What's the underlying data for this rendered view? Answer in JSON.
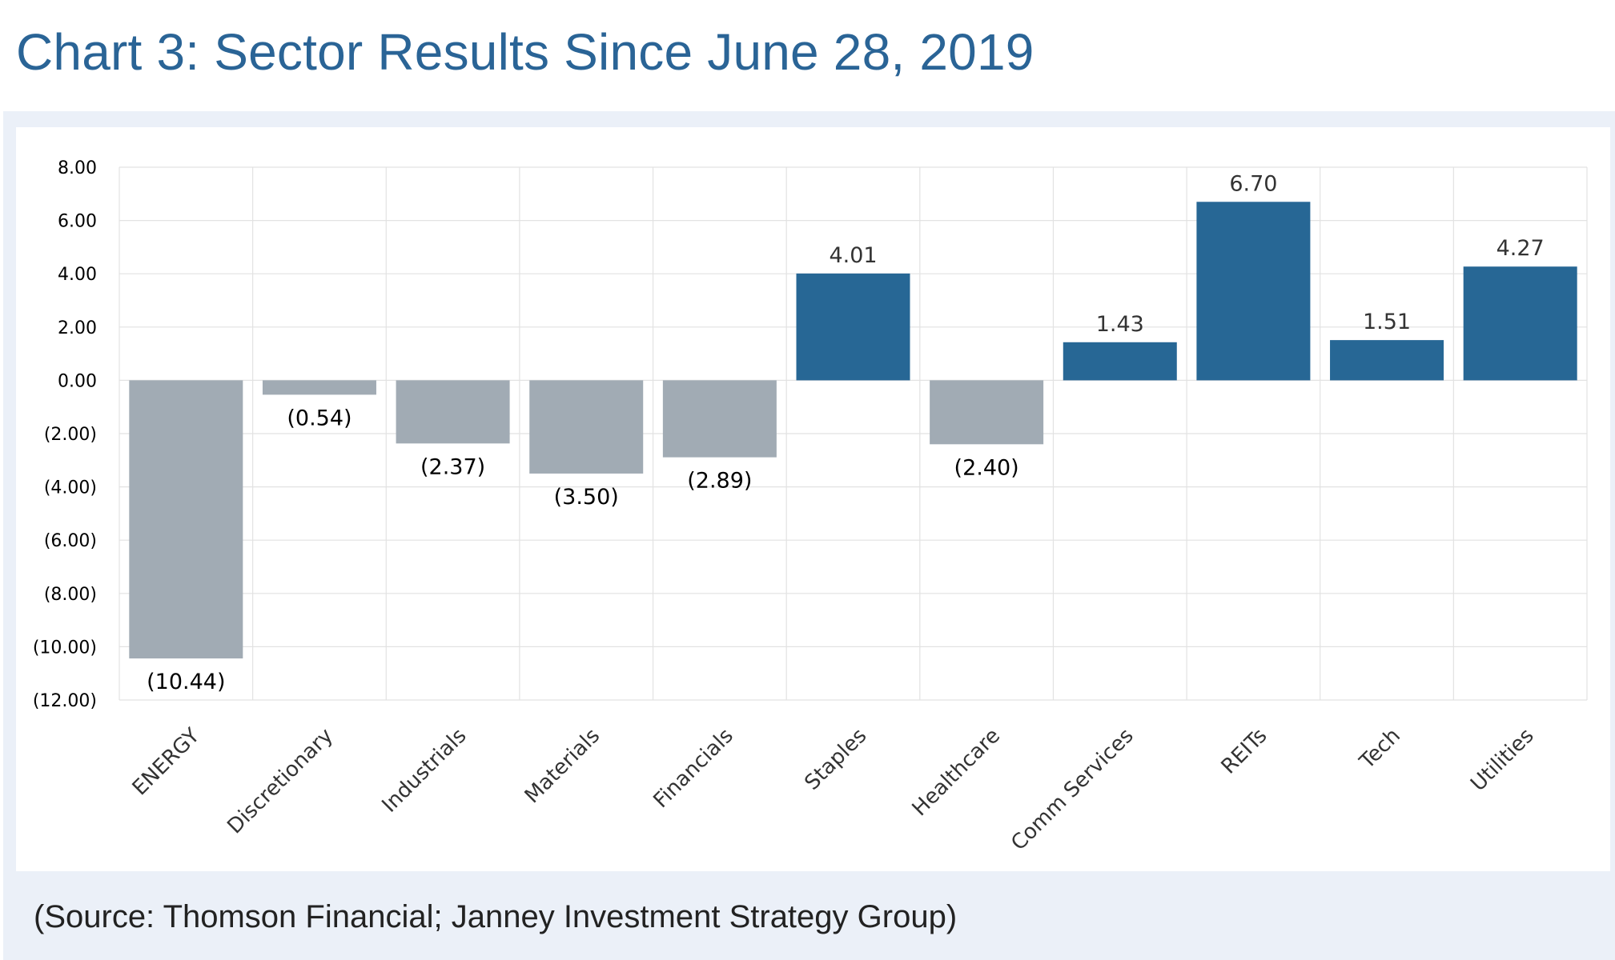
{
  "title": "Chart 3:  Sector Results Since June 28, 2019",
  "source": "(Source: Thomson Financial; Janney Investment Strategy Group)",
  "colors": {
    "title": "#2a6496",
    "positive_bar": "#276795",
    "negative_bar": "#a1abb4",
    "grid": "#e2e2e2",
    "panel_bg": "#ebf0f8"
  },
  "chart_data": {
    "type": "bar",
    "title": "Chart 3:  Sector Results Since June 28, 2019",
    "xlabel": "",
    "ylabel": "",
    "ylim": [
      -12,
      8
    ],
    "yticks": [
      8,
      6,
      4,
      2,
      0,
      -2,
      -4,
      -6,
      -8,
      -10,
      -12
    ],
    "ytick_labels": [
      "8.00",
      "6.00",
      "4.00",
      "2.00",
      "0.00",
      "(2.00)",
      "(4.00)",
      "(6.00)",
      "(8.00)",
      "(10.00)",
      "(12.00)"
    ],
    "categories": [
      "ENERGY",
      "Discretionary",
      "Industrials",
      "Materials",
      "Financials",
      "Staples",
      "Healthcare",
      "Comm Services",
      "REITs",
      "Tech",
      "Utilities"
    ],
    "values": [
      -10.44,
      -0.54,
      -2.37,
      -3.5,
      -2.89,
      4.01,
      -2.4,
      1.43,
      6.7,
      1.51,
      4.27
    ],
    "data_labels": [
      "(10.44)",
      "(0.54)",
      "(2.37)",
      "(3.50)",
      "(2.89)",
      "4.01",
      "(2.40)",
      "1.43",
      "6.70",
      "1.51",
      "4.27"
    ],
    "grid": true,
    "legend": "none"
  }
}
